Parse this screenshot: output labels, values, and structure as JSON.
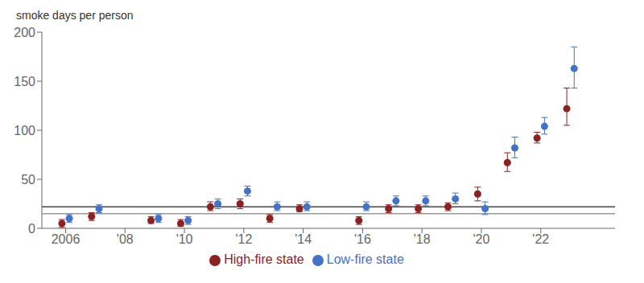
{
  "chart_data": {
    "type": "scatter",
    "title": "smoke days per person",
    "x": [
      2006,
      2007,
      2009,
      2010,
      2011,
      2012,
      2013,
      2014,
      2016,
      2017,
      2018,
      2019,
      2020,
      2021,
      2022,
      2023
    ],
    "series": [
      {
        "name": "High-fire state",
        "color": "#8B2222",
        "marker": "circle",
        "values": [
          5,
          12,
          8,
          5,
          22,
          25,
          10,
          20,
          8,
          20,
          20,
          22,
          35,
          67,
          92,
          122
        ],
        "ci_lo": [
          1,
          8,
          5,
          2,
          18,
          20,
          6,
          17,
          4,
          16,
          16,
          18,
          28,
          58,
          87,
          105
        ],
        "ci_hi": [
          9,
          16,
          12,
          9,
          27,
          30,
          14,
          24,
          12,
          24,
          24,
          26,
          42,
          77,
          98,
          143
        ]
      },
      {
        "name": "Low-fire state",
        "color": "#4472C4",
        "marker": "circle",
        "values": [
          10,
          20,
          10,
          8,
          25,
          38,
          22,
          22,
          22,
          28,
          28,
          30,
          20,
          82,
          104,
          163
        ],
        "ci_lo": [
          6,
          16,
          6,
          4,
          20,
          33,
          18,
          18,
          18,
          23,
          23,
          25,
          14,
          72,
          96,
          143
        ],
        "ci_hi": [
          14,
          24,
          14,
          12,
          30,
          43,
          27,
          27,
          27,
          33,
          33,
          36,
          27,
          93,
          113,
          185
        ]
      }
    ],
    "hlines": [
      {
        "value": 22,
        "color": "#444444"
      },
      {
        "value": 15,
        "color": "#999999"
      }
    ],
    "xlim": [
      2005.2,
      2024.5
    ],
    "xticks": [
      2006,
      {
        "value": 2008,
        "label": "'08"
      },
      {
        "value": 2010,
        "label": "'10"
      },
      {
        "value": 2012,
        "label": "'12"
      },
      {
        "value": 2014,
        "label": "'14"
      },
      {
        "value": 2016,
        "label": "'16"
      },
      {
        "value": 2018,
        "label": "'18"
      },
      {
        "value": 2020,
        "label": "'20"
      },
      {
        "value": 2022,
        "label": "'22"
      }
    ],
    "ylim": [
      0,
      200
    ],
    "yticks": [
      0,
      50,
      100,
      150,
      200
    ],
    "grid": false,
    "legend": "bottom"
  }
}
